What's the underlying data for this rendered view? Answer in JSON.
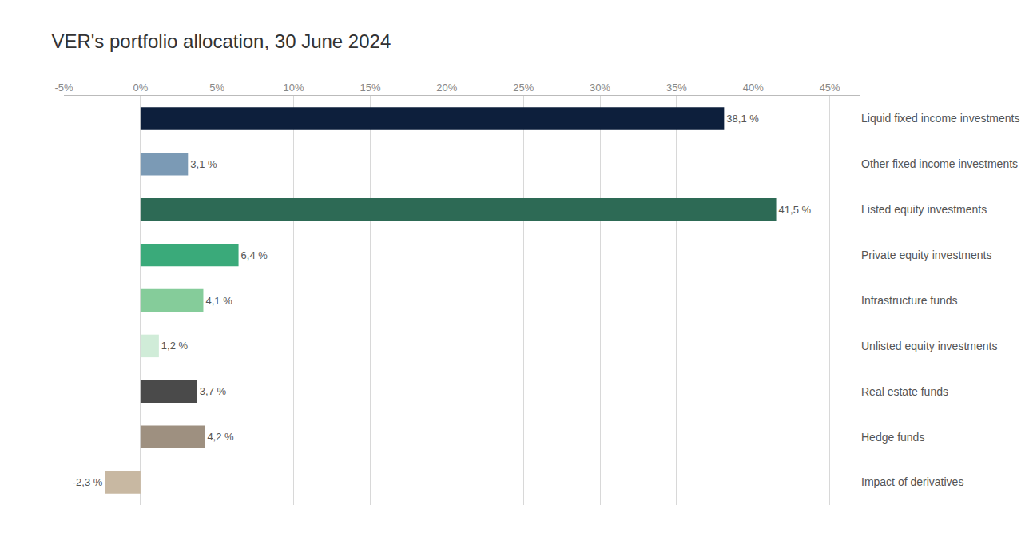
{
  "chart_data": {
    "type": "bar",
    "orientation": "horizontal",
    "title": "VER's portfolio allocation, 30 June 2024",
    "categories": [
      "Liquid fixed income investments",
      "Other fixed income investments",
      "Listed equity investments",
      "Private equity investments",
      "Infrastructure funds",
      "Unlisted equity investments",
      "Real estate funds",
      "Hedge funds",
      "Impact of derivatives"
    ],
    "values": [
      38.1,
      3.1,
      41.5,
      6.4,
      4.1,
      1.2,
      3.7,
      4.2,
      -2.3
    ],
    "value_labels": [
      "38,1 %",
      "3,1 %",
      "41,5 %",
      "6,4 %",
      "4,1 %",
      "1,2 %",
      "3,7 %",
      "4,2 %",
      "-2,3 %"
    ],
    "colors": [
      "#0d1f3c",
      "#7b9ab5",
      "#2d6a55",
      "#3aaa7a",
      "#85cc9a",
      "#d0ecd8",
      "#4a4a4a",
      "#9e9080",
      "#c8b8a2"
    ],
    "xlim": [
      -5,
      47
    ],
    "xticks": [
      {
        "value": -5,
        "label": "-5%"
      },
      {
        "value": 0,
        "label": "0%"
      },
      {
        "value": 5,
        "label": "5%"
      },
      {
        "value": 10,
        "label": "10%"
      },
      {
        "value": 15,
        "label": "15%"
      },
      {
        "value": 20,
        "label": "20%"
      },
      {
        "value": 25,
        "label": "25%"
      },
      {
        "value": 30,
        "label": "30%"
      },
      {
        "value": 35,
        "label": "35%"
      },
      {
        "value": 40,
        "label": "40%"
      },
      {
        "value": 45,
        "label": "45%"
      }
    ],
    "grid": true,
    "data_labels": true
  }
}
